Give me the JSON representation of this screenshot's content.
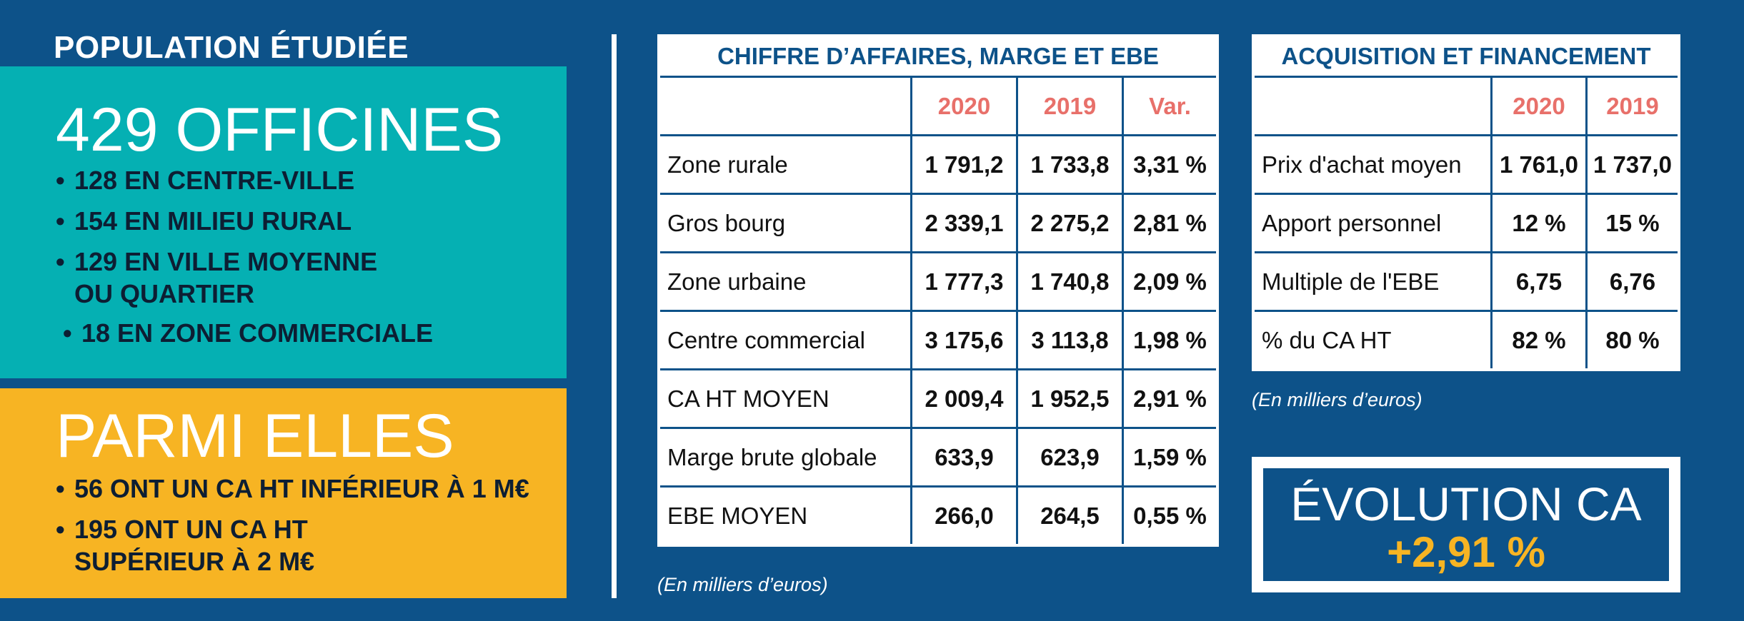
{
  "population": {
    "title": "POPULATION ÉTUDIÉE",
    "officines": {
      "heading": "429 OFFICINES",
      "items": [
        "128 EN CENTRE-VILLE",
        "154 EN MILIEU RURAL",
        "129 EN VILLE MOYENNE OU QUARTIER",
        "18 EN ZONE COMMERCIALE"
      ],
      "item3_line1": "129 EN VILLE MOYENNE",
      "item3_line2": "OU QUARTIER"
    },
    "parmi": {
      "heading": "PARMI ELLES",
      "item1": "56 ONT UN CA HT INFÉRIEUR À 1 M€",
      "item2_line1": "195 ONT UN CA HT",
      "item2_line2": "SUPÉRIEUR À 2 M€"
    }
  },
  "ca_table": {
    "title": "CHIFFRE D’AFFAIRES, MARGE ET EBE",
    "headers": [
      "",
      "2020",
      "2019",
      "Var."
    ],
    "rows": [
      [
        "Zone rurale",
        "1 791,2",
        "1 733,8",
        "3,31 %"
      ],
      [
        "Gros bourg",
        "2 339,1",
        "2 275,2",
        "2,81 %"
      ],
      [
        "Zone urbaine",
        "1 777,3",
        "1 740,8",
        "2,09 %"
      ],
      [
        "Centre commercial",
        "3 175,6",
        "3 113,8",
        "1,98 %"
      ],
      [
        "CA HT MOYEN",
        "2 009,4",
        "1 952,5",
        "2,91 %"
      ],
      [
        "Marge brute globale",
        "633,9",
        "623,9",
        "1,59 %"
      ],
      [
        "EBE MOYEN",
        "266,0",
        "264,5",
        "0,55 %"
      ]
    ],
    "note": "(En milliers d’euros)"
  },
  "acq_table": {
    "title": "ACQUISITION ET FINANCEMENT",
    "headers": [
      "",
      "2020",
      "2019"
    ],
    "rows": [
      [
        "Prix d'achat moyen",
        "1 761,0",
        "1 737,0"
      ],
      [
        "Apport personnel",
        "12 %",
        "15 %"
      ],
      [
        "Multiple de l'EBE",
        "6,75",
        "6,76"
      ],
      [
        "% du CA HT",
        "82 %",
        "80 %"
      ]
    ],
    "note": "(En milliers d’euros)"
  },
  "evolution": {
    "title": "ÉVOLUTION CA",
    "value": "+2,91 %"
  },
  "colors": {
    "background": "#0d5289",
    "teal": "#05b0b3",
    "orange": "#f7b423",
    "year_header": "#e8706a"
  }
}
